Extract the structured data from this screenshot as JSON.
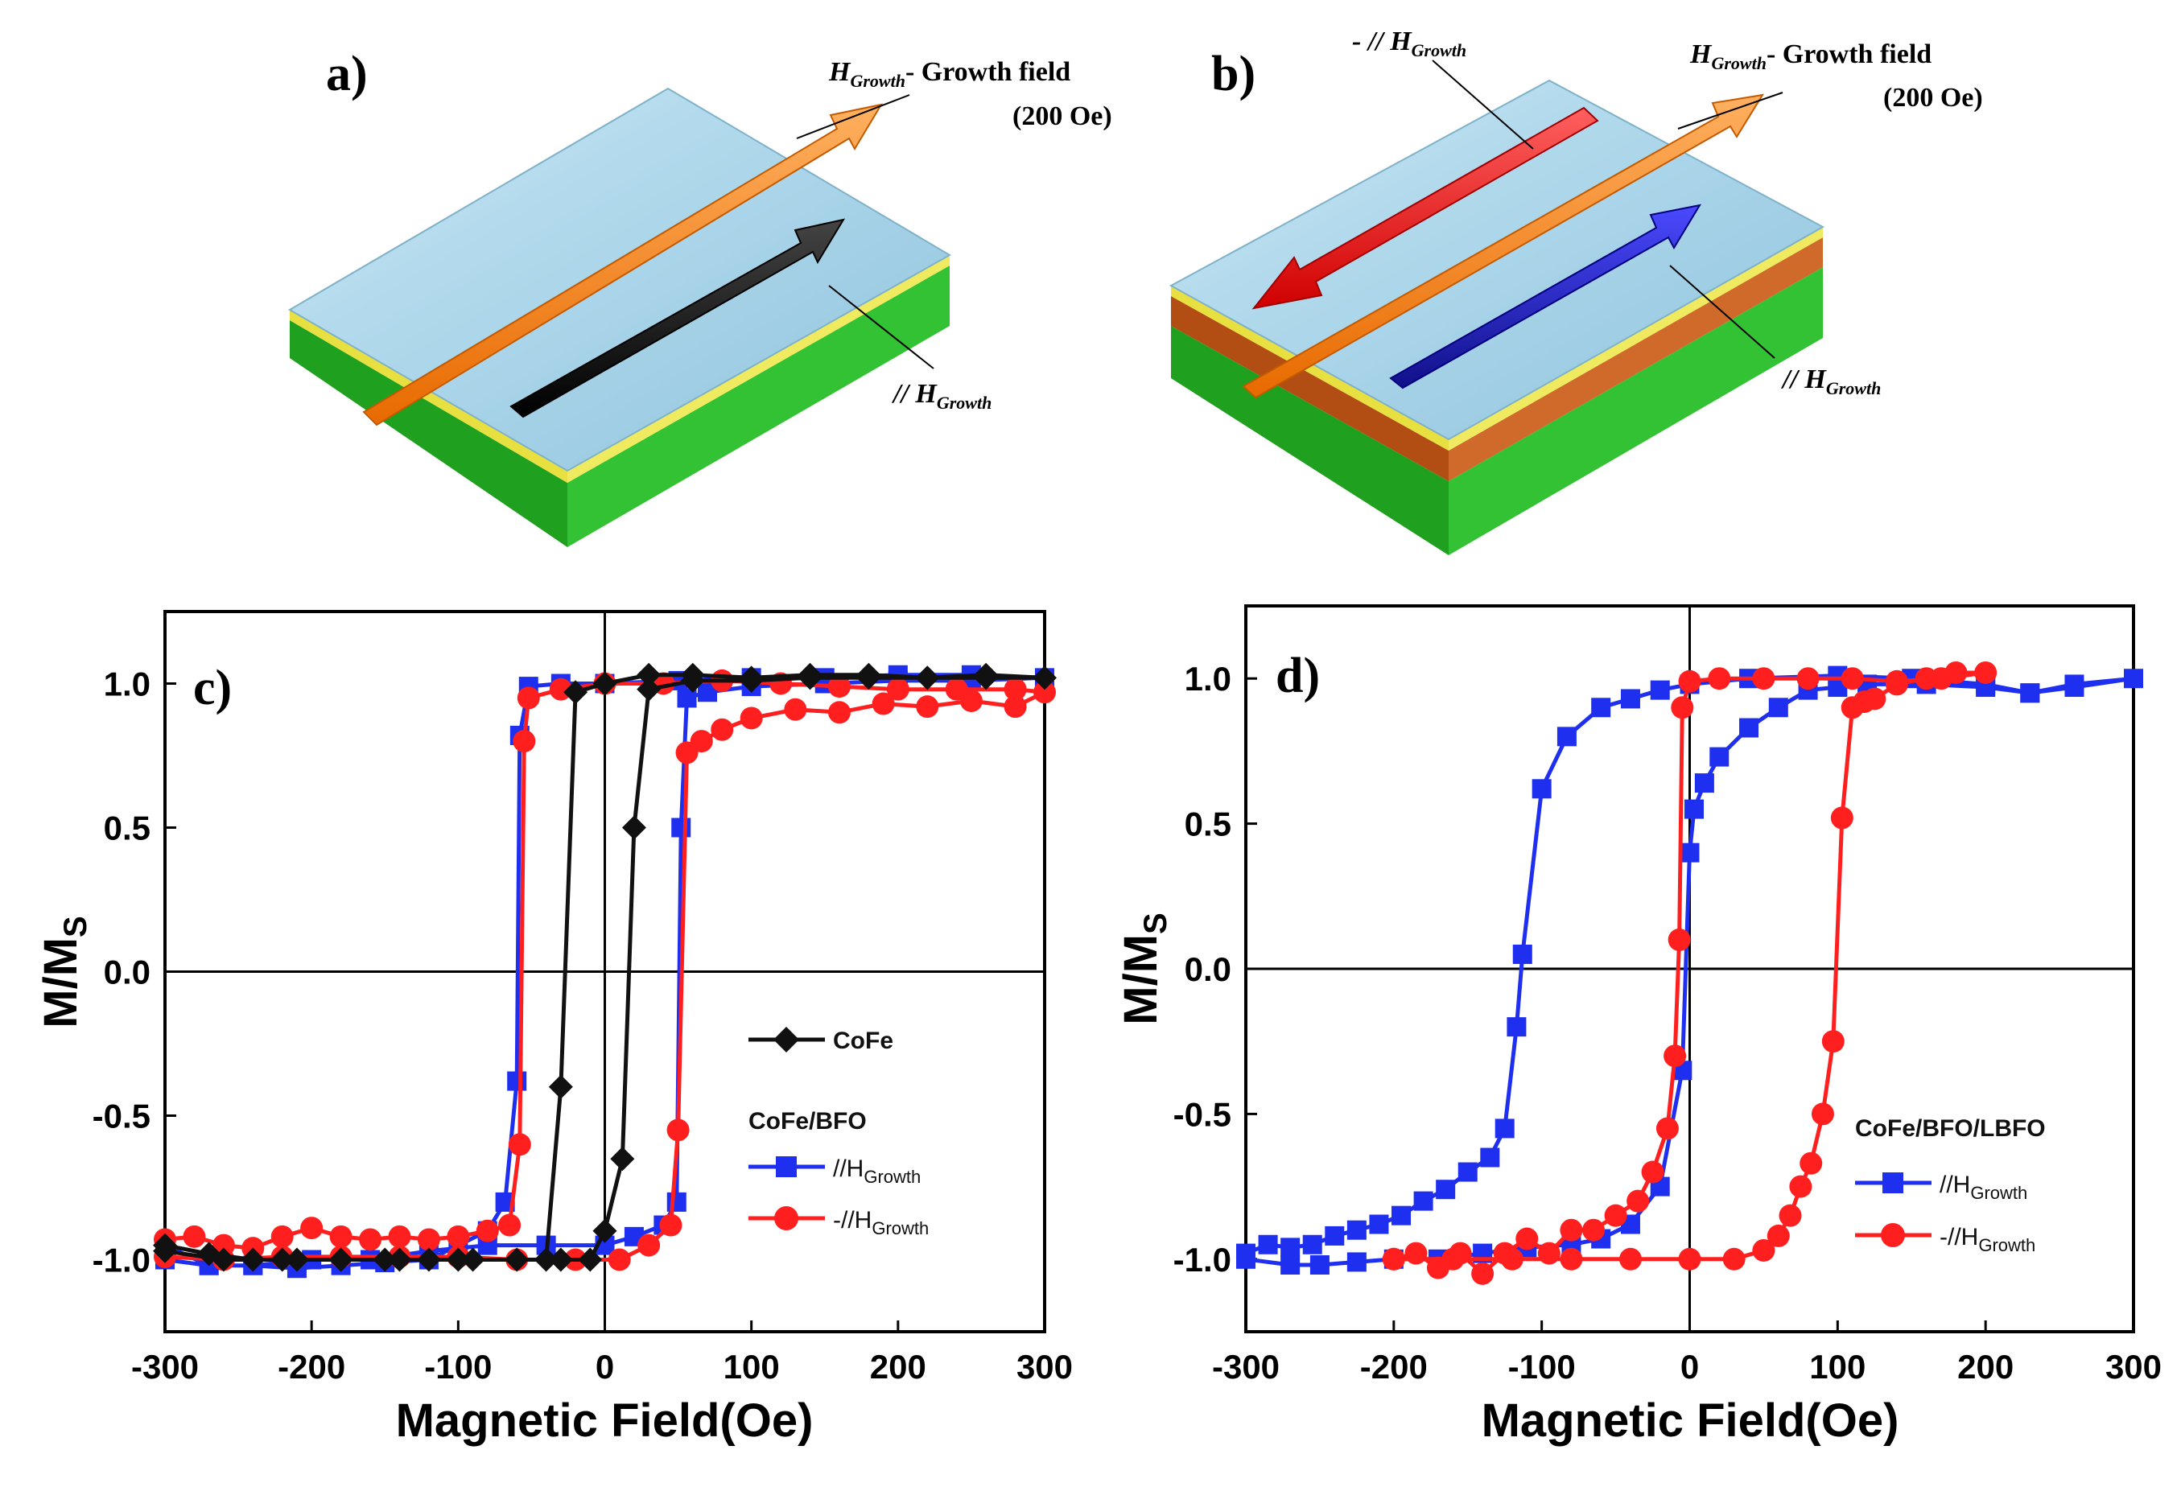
{
  "panels": {
    "a": {
      "letter": "a)",
      "growth_field": {
        "h": "H",
        "sub": "Growth",
        "rest": "- Growth  field",
        "strength": "(200 Oe)"
      },
      "parallel": {
        "prefix": "// H",
        "sub": "Growth"
      }
    },
    "b": {
      "letter": "b)",
      "antiparallel": {
        "prefix": "- // H",
        "sub": "Growth"
      },
      "growth_field": {
        "h": "H",
        "sub": "Growth",
        "rest": "- Growth  field",
        "strength": "(200 Oe)"
      },
      "parallel": {
        "prefix": "// H",
        "sub": "Growth"
      }
    }
  },
  "colors": {
    "blue": "#1f2fef",
    "red": "#ff1f1f",
    "black": "#111111",
    "orange": "#ff8a1a",
    "film": "#a8d2e8",
    "substrate": "#22b022",
    "yellow": "#e8e040",
    "brown": "#c0581a"
  },
  "chart_data": [
    {
      "id": "c",
      "type": "line",
      "letter": "c)",
      "xlabel": "Magnetic Field(Oe)",
      "ylabel": "M/M",
      "ylabel_sub": "S",
      "xlim": [
        -300,
        300
      ],
      "ylim": [
        -1.25,
        1.25
      ],
      "xticks": [
        "-300",
        "-200",
        "-100",
        "0",
        "100",
        "200",
        "300"
      ],
      "yticks": [
        "-1.0",
        "-0.5",
        "0.0",
        "0.5",
        "1.0"
      ],
      "legend": {
        "single": "CoFe",
        "group_title": "CoFe/BFO",
        "entries": [
          {
            "main": "//H",
            "sub": "Growth"
          },
          {
            "main": "-//H",
            "sub": "Growth"
          }
        ]
      },
      "series": [
        {
          "name": "CoFe",
          "color": "black",
          "marker": "diamond",
          "points": [
            [
              -300,
              -0.95
            ],
            [
              -270,
              -0.98
            ],
            [
              -240,
              -1.0
            ],
            [
              -210,
              -1.0
            ],
            [
              -180,
              -1.0
            ],
            [
              -150,
              -1.0
            ],
            [
              -120,
              -1.0
            ],
            [
              -90,
              -1.0
            ],
            [
              -60,
              -1.0
            ],
            [
              -40,
              -1.0
            ],
            [
              -30,
              -0.4
            ],
            [
              -20,
              0.97
            ],
            [
              0,
              1.0
            ],
            [
              30,
              1.03
            ],
            [
              60,
              1.03
            ],
            [
              100,
              1.02
            ],
            [
              140,
              1.03
            ],
            [
              180,
              1.03
            ],
            [
              220,
              1.02
            ],
            [
              260,
              1.03
            ],
            [
              300,
              1.02
            ],
            [
              260,
              1.02
            ],
            [
              220,
              1.02
            ],
            [
              180,
              1.02
            ],
            [
              140,
              1.02
            ],
            [
              100,
              1.01
            ],
            [
              60,
              1.01
            ],
            [
              30,
              0.98
            ],
            [
              20,
              0.5
            ],
            [
              12,
              -0.65
            ],
            [
              0,
              -0.9
            ],
            [
              -10,
              -1.0
            ],
            [
              -30,
              -1.0
            ],
            [
              -60,
              -1.0
            ],
            [
              -100,
              -1.0
            ],
            [
              -140,
              -1.0
            ],
            [
              -180,
              -1.0
            ],
            [
              -220,
              -1.0
            ],
            [
              -260,
              -1.0
            ],
            [
              -300,
              -0.97
            ]
          ]
        },
        {
          "name": "//HGrowth",
          "color": "blue",
          "marker": "square",
          "points": [
            [
              -300,
              -0.95
            ],
            [
              -270,
              -1.02
            ],
            [
              -240,
              -1.02
            ],
            [
              -210,
              -1.03
            ],
            [
              -180,
              -1.02
            ],
            [
              -150,
              -1.01
            ],
            [
              -120,
              -1.0
            ],
            [
              -100,
              -0.95
            ],
            [
              -80,
              -0.9
            ],
            [
              -68,
              -0.8
            ],
            [
              -60,
              -0.38
            ],
            [
              -58,
              0.82
            ],
            [
              -52,
              0.99
            ],
            [
              -30,
              1.0
            ],
            [
              0,
              1.0
            ],
            [
              50,
              1.01
            ],
            [
              100,
              1.02
            ],
            [
              150,
              1.02
            ],
            [
              200,
              1.03
            ],
            [
              250,
              1.03
            ],
            [
              300,
              1.02
            ],
            [
              250,
              1.01
            ],
            [
              200,
              1.01
            ],
            [
              150,
              1.0
            ],
            [
              100,
              0.99
            ],
            [
              70,
              0.97
            ],
            [
              56,
              0.95
            ],
            [
              52,
              0.5
            ],
            [
              49,
              -0.8
            ],
            [
              40,
              -0.88
            ],
            [
              20,
              -0.92
            ],
            [
              0,
              -0.95
            ],
            [
              -40,
              -0.95
            ],
            [
              -80,
              -0.95
            ],
            [
              -120,
              -0.97
            ],
            [
              -160,
              -1.0
            ],
            [
              -200,
              -1.0
            ],
            [
              -240,
              -1.02
            ],
            [
              -270,
              -1.02
            ],
            [
              -300,
              -1.0
            ]
          ]
        },
        {
          "name": "-//HGrowth",
          "color": "red",
          "marker": "circle",
          "points": [
            [
              -300,
              -0.93
            ],
            [
              -280,
              -0.92
            ],
            [
              -260,
              -0.95
            ],
            [
              -240,
              -0.96
            ],
            [
              -220,
              -0.92
            ],
            [
              -200,
              -0.89
            ],
            [
              -180,
              -0.92
            ],
            [
              -160,
              -0.93
            ],
            [
              -140,
              -0.92
            ],
            [
              -120,
              -0.93
            ],
            [
              -100,
              -0.92
            ],
            [
              -80,
              -0.9
            ],
            [
              -65,
              -0.88
            ],
            [
              -58,
              -0.6
            ],
            [
              -55,
              0.8
            ],
            [
              -52,
              0.95
            ],
            [
              -30,
              0.98
            ],
            [
              0,
              1.0
            ],
            [
              40,
              1.0
            ],
            [
              80,
              1.01
            ],
            [
              120,
              1.0
            ],
            [
              160,
              0.99
            ],
            [
              200,
              0.98
            ],
            [
              240,
              0.98
            ],
            [
              280,
              0.98
            ],
            [
              300,
              0.97
            ],
            [
              280,
              0.92
            ],
            [
              250,
              0.94
            ],
            [
              220,
              0.92
            ],
            [
              190,
              0.93
            ],
            [
              160,
              0.9
            ],
            [
              130,
              0.91
            ],
            [
              100,
              0.88
            ],
            [
              80,
              0.84
            ],
            [
              66,
              0.8
            ],
            [
              56,
              0.76
            ],
            [
              50,
              -0.55
            ],
            [
              45,
              -0.88
            ],
            [
              30,
              -0.95
            ],
            [
              10,
              -1.0
            ],
            [
              -20,
              -1.0
            ],
            [
              -60,
              -1.0
            ],
            [
              -100,
              -0.99
            ],
            [
              -140,
              -0.99
            ],
            [
              -180,
              -0.99
            ],
            [
              -220,
              -0.99
            ],
            [
              -260,
              -1.0
            ],
            [
              -300,
              -0.99
            ]
          ]
        }
      ]
    },
    {
      "id": "d",
      "type": "line",
      "letter": "d)",
      "xlabel": "Magnetic Field(Oe)",
      "ylabel": "M/M",
      "ylabel_sub": "S",
      "xlim": [
        -300,
        300
      ],
      "ylim": [
        -1.25,
        1.25
      ],
      "xticks": [
        "-300",
        "-200",
        "-100",
        "0",
        "100",
        "200",
        "300"
      ],
      "yticks": [
        "-1.0",
        "-0.5",
        "0.0",
        "0.5",
        "1.0"
      ],
      "legend": {
        "group_title": "CoFe/BFO/LBFO",
        "entries": [
          {
            "main": "//H",
            "sub": "Growth"
          },
          {
            "main": "-//H",
            "sub": "Growth"
          }
        ]
      },
      "series": [
        {
          "name": "//HGrowth",
          "color": "blue",
          "marker": "square",
          "points": [
            [
              -300,
              -0.98
            ],
            [
              -285,
              -0.95
            ],
            [
              -270,
              -0.96
            ],
            [
              -255,
              -0.95
            ],
            [
              -240,
              -0.92
            ],
            [
              -225,
              -0.9
            ],
            [
              -210,
              -0.88
            ],
            [
              -195,
              -0.85
            ],
            [
              -180,
              -0.8
            ],
            [
              -165,
              -0.76
            ],
            [
              -150,
              -0.7
            ],
            [
              -135,
              -0.65
            ],
            [
              -125,
              -0.55
            ],
            [
              -117,
              -0.2
            ],
            [
              -113,
              0.05
            ],
            [
              -100,
              0.62
            ],
            [
              -83,
              0.8
            ],
            [
              -60,
              0.9
            ],
            [
              -40,
              0.93
            ],
            [
              -20,
              0.96
            ],
            [
              0,
              0.98
            ],
            [
              40,
              1.0
            ],
            [
              100,
              1.01
            ],
            [
              150,
              1.0
            ],
            [
              200,
              0.98
            ],
            [
              230,
              0.95
            ],
            [
              260,
              0.98
            ],
            [
              300,
              1.0
            ],
            [
              260,
              0.97
            ],
            [
              230,
              0.95
            ],
            [
              200,
              0.97
            ],
            [
              160,
              0.98
            ],
            [
              120,
              0.98
            ],
            [
              100,
              0.97
            ],
            [
              80,
              0.96
            ],
            [
              60,
              0.9
            ],
            [
              40,
              0.83
            ],
            [
              20,
              0.73
            ],
            [
              10,
              0.64
            ],
            [
              3,
              0.55
            ],
            [
              0,
              0.4
            ],
            [
              -5,
              -0.35
            ],
            [
              -20,
              -0.75
            ],
            [
              -40,
              -0.88
            ],
            [
              -60,
              -0.93
            ],
            [
              -80,
              -0.95
            ],
            [
              -110,
              -0.96
            ],
            [
              -140,
              -0.98
            ],
            [
              -170,
              -1.0
            ],
            [
              -200,
              -1.0
            ],
            [
              -225,
              -1.01
            ],
            [
              -250,
              -1.02
            ],
            [
              -270,
              -1.02
            ],
            [
              -300,
              -1.0
            ]
          ]
        },
        {
          "name": "-//HGrowth",
          "color": "red",
          "marker": "circle",
          "points": [
            [
              -200,
              -1.0
            ],
            [
              -185,
              -0.98
            ],
            [
              -170,
              -1.03
            ],
            [
              -155,
              -0.98
            ],
            [
              -140,
              -1.05
            ],
            [
              -125,
              -0.98
            ],
            [
              -110,
              -0.93
            ],
            [
              -95,
              -0.98
            ],
            [
              -80,
              -0.9
            ],
            [
              -65,
              -0.9
            ],
            [
              -50,
              -0.85
            ],
            [
              -35,
              -0.8
            ],
            [
              -25,
              -0.7
            ],
            [
              -15,
              -0.55
            ],
            [
              -10,
              -0.3
            ],
            [
              -7,
              0.1
            ],
            [
              -5,
              0.9
            ],
            [
              0,
              0.99
            ],
            [
              20,
              1.0
            ],
            [
              50,
              1.0
            ],
            [
              80,
              1.0
            ],
            [
              110,
              1.0
            ],
            [
              140,
              0.99
            ],
            [
              170,
              1.0
            ],
            [
              200,
              1.02
            ],
            [
              180,
              1.02
            ],
            [
              160,
              1.0
            ],
            [
              140,
              0.98
            ],
            [
              125,
              0.93
            ],
            [
              118,
              0.92
            ],
            [
              110,
              0.9
            ],
            [
              103,
              0.52
            ],
            [
              97,
              -0.25
            ],
            [
              90,
              -0.5
            ],
            [
              82,
              -0.67
            ],
            [
              75,
              -0.75
            ],
            [
              68,
              -0.85
            ],
            [
              60,
              -0.92
            ],
            [
              50,
              -0.97
            ],
            [
              30,
              -1.0
            ],
            [
              0,
              -1.0
            ],
            [
              -40,
              -1.0
            ],
            [
              -80,
              -1.0
            ],
            [
              -120,
              -1.0
            ],
            [
              -160,
              -1.0
            ],
            [
              -200,
              -1.0
            ]
          ]
        }
      ]
    }
  ]
}
